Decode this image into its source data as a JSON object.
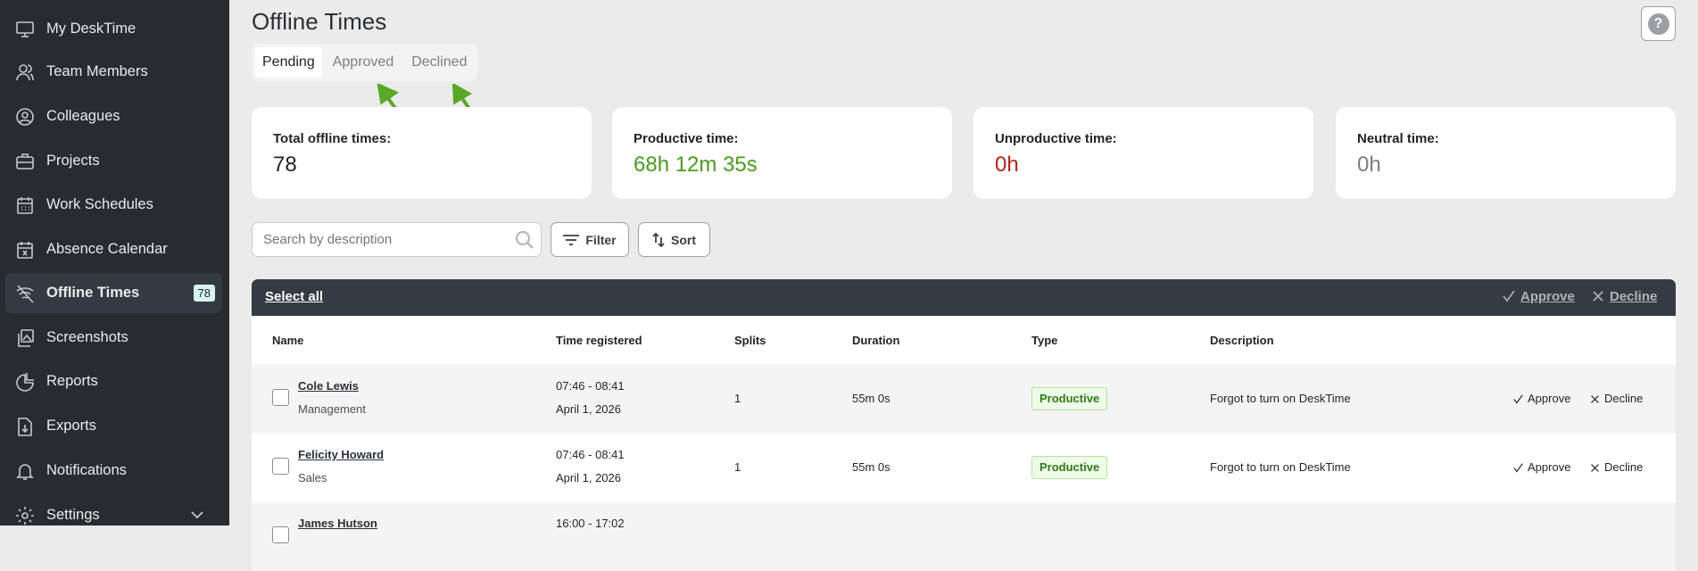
{
  "sidebar": {
    "items": [
      {
        "label": "My DeskTime",
        "icon": "monitor-icon"
      },
      {
        "label": "Team Members",
        "icon": "users-icon"
      },
      {
        "label": "Colleagues",
        "icon": "user-circle-icon"
      },
      {
        "label": "Projects",
        "icon": "briefcase-icon"
      },
      {
        "label": "Work Schedules",
        "icon": "calendar-icon"
      },
      {
        "label": "Absence Calendar",
        "icon": "calendar-x-icon"
      },
      {
        "label": "Offline Times",
        "icon": "wifi-off-icon",
        "badge": "78",
        "active": true
      },
      {
        "label": "Screenshots",
        "icon": "image-icon"
      },
      {
        "label": "Reports",
        "icon": "pie-chart-icon"
      },
      {
        "label": "Exports",
        "icon": "file-download-icon"
      },
      {
        "label": "Notifications",
        "icon": "bell-icon"
      },
      {
        "label": "Settings",
        "icon": "gear-icon"
      }
    ]
  },
  "header": {
    "title": "Offline Times",
    "help": "?"
  },
  "tabs": [
    "Pending",
    "Approved",
    "Declined"
  ],
  "cards": [
    {
      "label": "Total offline times:",
      "value": "78",
      "color": "#1f2328"
    },
    {
      "label": "Productive time:",
      "value": "68h 12m 35s",
      "color": "#4a9a1e"
    },
    {
      "label": "Unproductive time:",
      "value": "0h",
      "color": "#b3261e"
    },
    {
      "label": "Neutral time:",
      "value": "0h",
      "color": "#7a7f85"
    }
  ],
  "toolbar": {
    "search_placeholder": "Search by description",
    "filter": "Filter",
    "sort": "Sort"
  },
  "bulk": {
    "select_all": "Select all",
    "approve": "Approve",
    "decline": "Decline"
  },
  "table": {
    "columns": [
      "Name",
      "Time registered",
      "Splits",
      "Duration",
      "Type",
      "Description"
    ],
    "rows": [
      {
        "name": "Cole Lewis",
        "team": "Management",
        "time": "07:46 - 08:41",
        "date": "April 1, 2026",
        "splits": "1",
        "duration": "55m 0s",
        "type": "Productive",
        "description": "Forgot to turn on DeskTime",
        "approve": "Approve",
        "decline": "Decline"
      },
      {
        "name": "Felicity Howard",
        "team": "Sales",
        "time": "07:46 - 08:41",
        "date": "April 1, 2026",
        "splits": "1",
        "duration": "55m 0s",
        "type": "Productive",
        "description": "Forgot to turn on DeskTime",
        "approve": "Approve",
        "decline": "Decline"
      },
      {
        "name": "James Hutson",
        "time": "16:00 - 17:02"
      }
    ]
  },
  "annotation_color": "#5aa829"
}
